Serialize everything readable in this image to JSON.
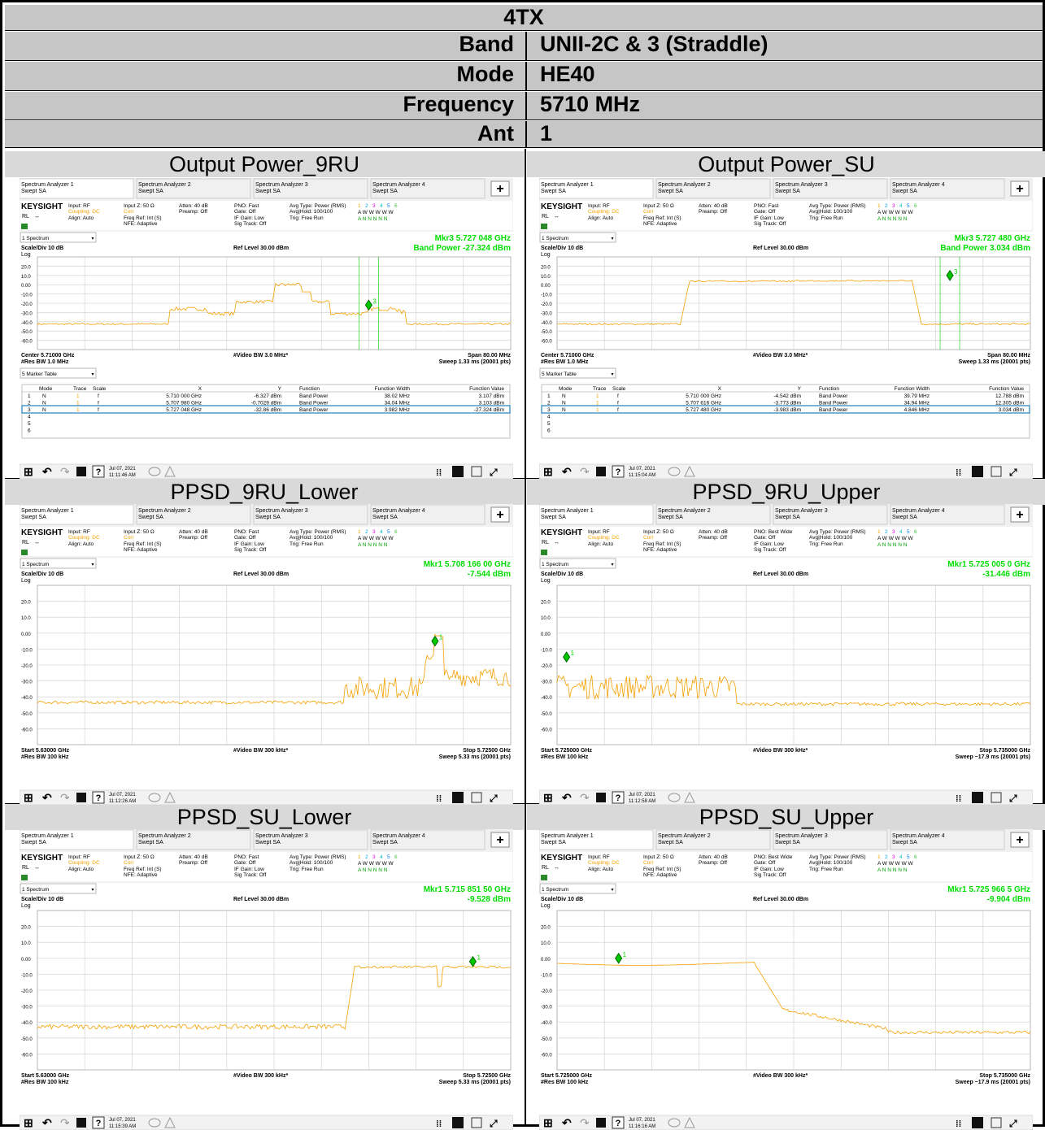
{
  "header": {
    "title": "4TX",
    "rows": [
      {
        "label": "Band",
        "value": "UNII-2C & 3 (Straddle)"
      },
      {
        "label": "Mode",
        "value": "HE40"
      },
      {
        "label": "Frequency",
        "value": "5710 MHz"
      },
      {
        "label": "Ant",
        "value": "1"
      }
    ]
  },
  "common": {
    "tabs": [
      {
        "l1": "Spectrum Analyzer 1",
        "l2": "Swept SA"
      },
      {
        "l1": "Spectrum Analyzer 2",
        "l2": "Swept SA"
      },
      {
        "l1": "Spectrum Analyzer 3",
        "l2": "Swept SA"
      },
      {
        "l1": "Spectrum Analyzer 4",
        "l2": "Swept SA"
      }
    ],
    "brand": "KEYSIGHT",
    "input": "Input: RF",
    "coupling": "Coupling: DC",
    "align": "Align: Auto",
    "rl": "RL",
    "inputz": "Input Z: 50 Ω",
    "corr": "Corr",
    "freqref": "Freq Ref: Int (S)",
    "nfe": "NFE: Adaptive",
    "atten": "Atten: 40 dB",
    "preamp": "Preamp: Off",
    "gate": "Gate: Off",
    "ifgain": "IF Gain: Low",
    "sigtrack": "Sig Track: Off",
    "avgtype": "Avg Type: Power (RMS)",
    "avghold": "Avg|Hold: 100/100",
    "trig": "Trig: Free Run",
    "traces": [
      "1",
      "2",
      "3",
      "4",
      "5",
      "6"
    ],
    "row_w": "A W W W W W",
    "row_n": "A N N N N N",
    "spectrum": "1 Spectrum",
    "scale": "Scale/Div 10 dB",
    "log": "Log",
    "ref": "Ref Level 30.00 dBm",
    "ylabels": [
      "20.0",
      "10.0",
      "0.00",
      "-10.0",
      "-20.0",
      "-30.0",
      "-40.0",
      "-50.0",
      "-60.0"
    ],
    "markertable": "5 Marker Table",
    "mt_headers": [
      "Mode",
      "Trace",
      "Scale",
      "X",
      "Y",
      "Function",
      "Function Width",
      "Function Value"
    ],
    "colors": {
      "trace": "#f5a000",
      "marker": "#00c800",
      "text_green": "#00dd00",
      "highlight": "#2080c0"
    }
  },
  "panels": [
    {
      "title": "Output Power_9RU",
      "pno": "PNO: Fast",
      "type": "band",
      "mkr1": "Mkr3  5.727 048 GHz",
      "mkr2": "Band Power -27.324 dBm",
      "bl1": "Center 5.71000 GHz",
      "bl2": "#Res BW 1.0 MHz",
      "bm": "#Video BW 3.0 MHz*",
      "br1": "Span 80.00 MHz",
      "br2": "Sweep 1.33 ms (20001 pts)",
      "date": "Jul 07, 2021",
      "time": "11:11:46 AM",
      "rows": [
        [
          "1",
          "N",
          "1",
          "f",
          "5.710 000 GHz",
          "-6.327 dBm",
          "Band Power",
          "38.02 MHz",
          "3.107 dBm"
        ],
        [
          "2",
          "N",
          "1",
          "f",
          "5.707 980 GHz",
          "-0.7029 dBm",
          "Band Power",
          "34.04 MHz",
          "3.103 dBm"
        ],
        [
          "3",
          "N",
          "1",
          "f",
          "5.727 048 GHz",
          "-32.86 dBm",
          "Band Power",
          "3.982 MHz",
          "-27.324 dBm"
        ],
        [
          "4"
        ],
        [
          "5"
        ],
        [
          "6"
        ]
      ]
    },
    {
      "title": "Output Power_SU",
      "pno": "PNO: Fast",
      "type": "band",
      "mkr1": "Mkr3  5.727 480 GHz",
      "mkr2": "Band Power 3.034 dBm",
      "bl1": "Center 5.71000 GHz",
      "bl2": "#Res BW 1.0 MHz",
      "bm": "#Video BW 3.0 MHz*",
      "br1": "Span 80.00 MHz",
      "br2": "Sweep 1.33 ms (20001 pts)",
      "date": "Jul 07, 2021",
      "time": "11:15:04 AM",
      "rows": [
        [
          "1",
          "N",
          "1",
          "f",
          "5.710 000 GHz",
          "-4.542 dBm",
          "Band Power",
          "39.79 MHz",
          "12.788 dBm"
        ],
        [
          "2",
          "N",
          "1",
          "f",
          "5.707 616 GHz",
          "-3.773 dBm",
          "Band Power",
          "34.94 MHz",
          "12.305 dBm"
        ],
        [
          "3",
          "N",
          "1",
          "f",
          "5.727 480 GHz",
          "-3.983 dBm",
          "Band Power",
          "4.846 MHz",
          "3.034 dBm"
        ],
        [
          "4"
        ],
        [
          "5"
        ],
        [
          "6"
        ]
      ]
    },
    {
      "title": "PPSD_9RU_Lower",
      "pno": "PNO: Fast",
      "type": "psd",
      "mkr1": "Mkr1  5.708 166 00 GHz",
      "mkr2": "-7.544 dBm",
      "bl1": "Start 5.63000 GHz",
      "bl2": "#Res BW 100 kHz",
      "bm": "#Video BW 300 kHz*",
      "br1": "Stop 5.72500 GHz",
      "br2": "Sweep 5.33 ms (20001 pts)",
      "date": "Jul 07, 2021",
      "time": "11:12:26 AM"
    },
    {
      "title": "PPSD_9RU_Upper",
      "pno": "PNO: Best Wide",
      "type": "psd",
      "mkr1": "Mkr1  5.725 005 0 GHz",
      "mkr2": "-31.446 dBm",
      "bl1": "Start 5.725000 GHz",
      "bl2": "#Res BW 100 kHz",
      "bm": "#Video BW 300 kHz*",
      "br1": "Stop 5.735000 GHz",
      "br2": "Sweep ~17.9 ms (20001 pts)",
      "date": "Jul 07, 2021",
      "time": "11:12:58 AM"
    },
    {
      "title": "PPSD_SU_Lower",
      "pno": "PNO: Fast",
      "type": "psd",
      "mkr1": "Mkr1  5.715 851 50 GHz",
      "mkr2": "-9.528 dBm",
      "bl1": "Start 5.63000 GHz",
      "bl2": "#Res BW 100 kHz",
      "bm": "#Video BW 300 kHz*",
      "br1": "Stop 5.72500 GHz",
      "br2": "Sweep 5.33 ms (20001 pts)",
      "date": "Jul 07, 2021",
      "time": "11:15:39 AM"
    },
    {
      "title": "PPSD_SU_Upper",
      "pno": "PNO: Best Wide",
      "type": "psd",
      "mkr1": "Mkr1  5.725 966 5 GHz",
      "mkr2": "-9.904 dBm",
      "bl1": "Start 5.725000 GHz",
      "bl2": "#Res BW 100 kHz",
      "bm": "#Video BW 300 kHz*",
      "br1": "Stop 5.735000 GHz",
      "br2": "Sweep ~17.9 ms (20001 pts)",
      "date": "Jul 07, 2021",
      "time": "11:16:16 AM"
    }
  ]
}
